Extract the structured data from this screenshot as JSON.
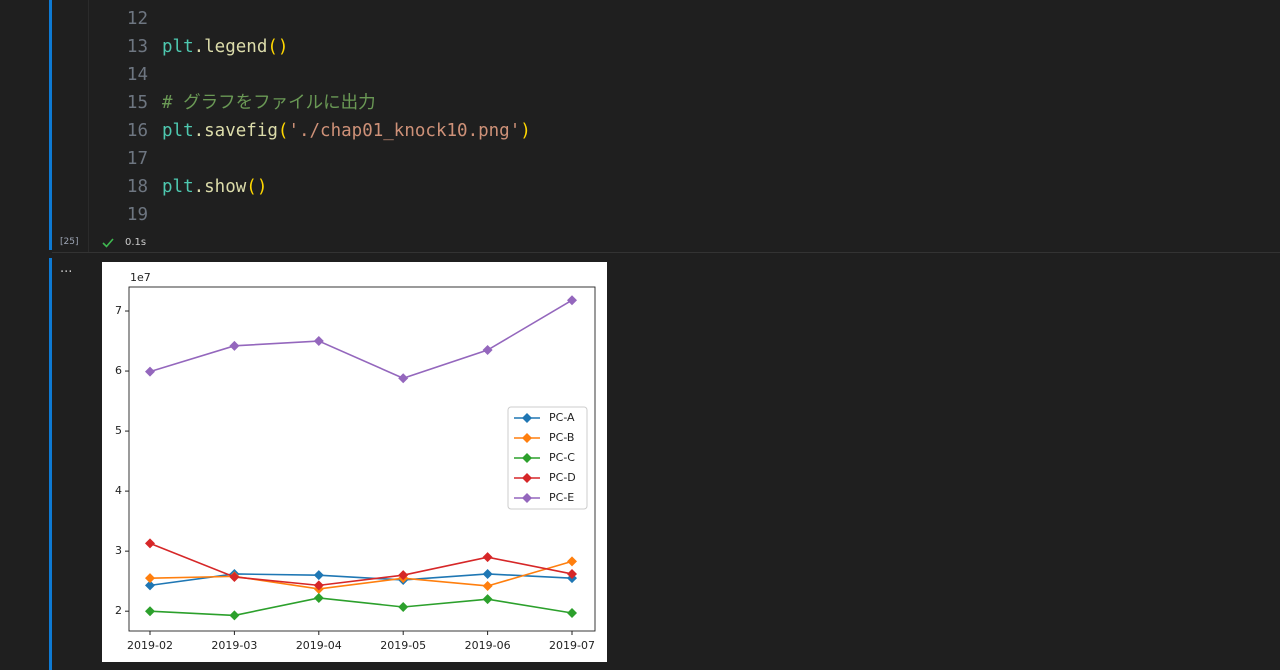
{
  "editor": {
    "lines": [
      {
        "number": 12,
        "tokens": []
      },
      {
        "number": 13,
        "tokens": [
          "plt",
          ".legend",
          "()"
        ]
      },
      {
        "number": 14,
        "tokens": []
      },
      {
        "number": 15,
        "tokens": [
          "# グラフをファイルに出力"
        ]
      },
      {
        "number": 16,
        "tokens": [
          "plt",
          ".savefig",
          "(",
          "'./chap01_knock10.png'",
          ")"
        ]
      },
      {
        "number": 17,
        "tokens": []
      },
      {
        "number": 18,
        "tokens": [
          "plt",
          ".show",
          "()"
        ]
      },
      {
        "number": 19,
        "tokens": []
      }
    ],
    "cell_status": {
      "execution_count": "[25]",
      "duration": "0.1s"
    },
    "output_menu": "..."
  },
  "chart_data": {
    "type": "line",
    "offset_label": "1e7",
    "categories": [
      "2019-02",
      "2019-03",
      "2019-04",
      "2019-05",
      "2019-06",
      "2019-07"
    ],
    "series": [
      {
        "name": "PC-A",
        "color": "#1f77b4",
        "values": [
          2.43,
          2.62,
          2.6,
          2.52,
          2.62,
          2.55
        ]
      },
      {
        "name": "PC-B",
        "color": "#ff7f0e",
        "values": [
          2.55,
          2.58,
          2.37,
          2.55,
          2.42,
          2.83
        ]
      },
      {
        "name": "PC-C",
        "color": "#2ca02c",
        "values": [
          2.0,
          1.93,
          2.22,
          2.07,
          2.2,
          1.97
        ]
      },
      {
        "name": "PC-D",
        "color": "#d62728",
        "values": [
          3.13,
          2.57,
          2.43,
          2.6,
          2.9,
          2.62
        ]
      },
      {
        "name": "PC-E",
        "color": "#9467bd",
        "values": [
          5.99,
          6.42,
          6.5,
          5.88,
          6.35,
          7.18
        ]
      }
    ],
    "ylim": [
      1.67,
      7.4
    ],
    "yticks": [
      2,
      3,
      4,
      5,
      6,
      7
    ],
    "marker": "diamond",
    "legend": "center right"
  }
}
